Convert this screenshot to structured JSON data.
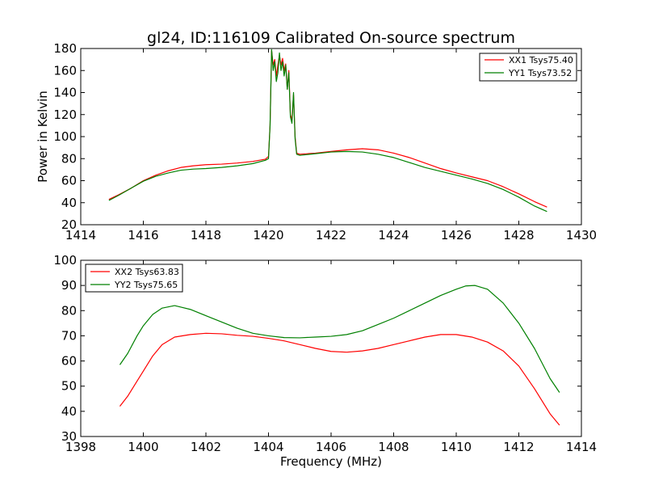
{
  "chart_data": [
    {
      "type": "line",
      "title": "gl24, ID:116109 Calibrated On-source spectrum",
      "xlabel": "",
      "ylabel": "Power in Kelvin",
      "xlim": [
        1414,
        1430
      ],
      "ylim": [
        20,
        180
      ],
      "xticks": [
        1414,
        1416,
        1418,
        1420,
        1422,
        1424,
        1426,
        1428,
        1430
      ],
      "yticks": [
        20,
        40,
        60,
        80,
        100,
        120,
        140,
        160,
        180
      ],
      "grid": false,
      "legend_position": "upper right",
      "series": [
        {
          "name": "XX1 Tsys75.40",
          "color": "#ff0000",
          "points": [
            [
              1414.9,
              43
            ],
            [
              1415.2,
              47
            ],
            [
              1415.6,
              53
            ],
            [
              1416.0,
              60
            ],
            [
              1416.4,
              65
            ],
            [
              1416.8,
              69
            ],
            [
              1417.2,
              72
            ],
            [
              1417.6,
              73.5
            ],
            [
              1418.0,
              74.5
            ],
            [
              1418.5,
              75
            ],
            [
              1419.0,
              76
            ],
            [
              1419.5,
              77.5
            ],
            [
              1419.9,
              79.5
            ],
            [
              1420.0,
              82
            ],
            [
              1420.05,
              110
            ],
            [
              1420.1,
              178
            ],
            [
              1420.15,
              165
            ],
            [
              1420.2,
              170
            ],
            [
              1420.25,
              155
            ],
            [
              1420.3,
              165
            ],
            [
              1420.35,
              174
            ],
            [
              1420.4,
              165
            ],
            [
              1420.45,
              171
            ],
            [
              1420.5,
              160
            ],
            [
              1420.55,
              166
            ],
            [
              1420.6,
              143
            ],
            [
              1420.65,
              160
            ],
            [
              1420.7,
              120
            ],
            [
              1420.75,
              115
            ],
            [
              1420.8,
              138
            ],
            [
              1420.85,
              100
            ],
            [
              1420.9,
              85
            ],
            [
              1421.0,
              84
            ],
            [
              1421.5,
              85
            ],
            [
              1422.0,
              86.5
            ],
            [
              1422.5,
              88
            ],
            [
              1423.0,
              89
            ],
            [
              1423.5,
              88
            ],
            [
              1424.0,
              85
            ],
            [
              1424.5,
              81
            ],
            [
              1425.0,
              76
            ],
            [
              1425.5,
              71
            ],
            [
              1426.0,
              67
            ],
            [
              1426.5,
              63.5
            ],
            [
              1427.0,
              60
            ],
            [
              1427.5,
              54.5
            ],
            [
              1428.0,
              48
            ],
            [
              1428.5,
              41
            ],
            [
              1428.9,
              36
            ]
          ]
        },
        {
          "name": "YY1 Tsys73.52",
          "color": "#008000",
          "points": [
            [
              1414.9,
              42
            ],
            [
              1415.2,
              46.5
            ],
            [
              1415.6,
              53
            ],
            [
              1416.0,
              59.5
            ],
            [
              1416.4,
              64
            ],
            [
              1416.8,
              67
            ],
            [
              1417.2,
              69.5
            ],
            [
              1417.6,
              70.5
            ],
            [
              1418.0,
              71
            ],
            [
              1418.5,
              72
            ],
            [
              1419.0,
              73.5
            ],
            [
              1419.5,
              75.5
            ],
            [
              1419.9,
              78.5
            ],
            [
              1420.0,
              80
            ],
            [
              1420.05,
              110
            ],
            [
              1420.1,
              179
            ],
            [
              1420.15,
              160
            ],
            [
              1420.2,
              168
            ],
            [
              1420.25,
              150
            ],
            [
              1420.3,
              158
            ],
            [
              1420.35,
              176
            ],
            [
              1420.4,
              160
            ],
            [
              1420.45,
              168
            ],
            [
              1420.5,
              155
            ],
            [
              1420.55,
              165
            ],
            [
              1420.6,
              143
            ],
            [
              1420.65,
              158
            ],
            [
              1420.7,
              118
            ],
            [
              1420.75,
              112
            ],
            [
              1420.8,
              140
            ],
            [
              1420.85,
              98
            ],
            [
              1420.9,
              84
            ],
            [
              1421.0,
              83
            ],
            [
              1421.5,
              84.5
            ],
            [
              1422.0,
              86
            ],
            [
              1422.5,
              86.5
            ],
            [
              1423.0,
              86
            ],
            [
              1423.5,
              84
            ],
            [
              1424.0,
              81
            ],
            [
              1424.5,
              76.5
            ],
            [
              1425.0,
              72
            ],
            [
              1425.5,
              68.5
            ],
            [
              1426.0,
              65
            ],
            [
              1426.5,
              61.5
            ],
            [
              1427.0,
              57.5
            ],
            [
              1427.5,
              52
            ],
            [
              1428.0,
              45
            ],
            [
              1428.5,
              37
            ],
            [
              1428.9,
              32
            ]
          ]
        }
      ]
    },
    {
      "type": "line",
      "title": "",
      "xlabel": "Frequency (MHz)",
      "ylabel": "",
      "xlim": [
        1398,
        1414
      ],
      "ylim": [
        30,
        100
      ],
      "xticks": [
        1398,
        1400,
        1402,
        1404,
        1406,
        1408,
        1410,
        1412,
        1414
      ],
      "yticks": [
        30,
        40,
        50,
        60,
        70,
        80,
        90,
        100
      ],
      "grid": false,
      "legend_position": "upper left",
      "series": [
        {
          "name": "XX2 Tsys63.83",
          "color": "#ff0000",
          "points": [
            [
              1399.25,
              42
            ],
            [
              1399.5,
              46
            ],
            [
              1399.8,
              52
            ],
            [
              1400.0,
              56
            ],
            [
              1400.3,
              62
            ],
            [
              1400.6,
              66.5
            ],
            [
              1401.0,
              69.5
            ],
            [
              1401.5,
              70.5
            ],
            [
              1402.0,
              71
            ],
            [
              1402.5,
              70.8
            ],
            [
              1403.0,
              70.2
            ],
            [
              1403.5,
              69.8
            ],
            [
              1404.0,
              69
            ],
            [
              1404.5,
              68
            ],
            [
              1405.0,
              66.5
            ],
            [
              1405.5,
              65
            ],
            [
              1406.0,
              63.8
            ],
            [
              1406.5,
              63.5
            ],
            [
              1407.0,
              64
            ],
            [
              1407.5,
              65
            ],
            [
              1408.0,
              66.5
            ],
            [
              1408.5,
              68
            ],
            [
              1409.0,
              69.5
            ],
            [
              1409.5,
              70.5
            ],
            [
              1410.0,
              70.5
            ],
            [
              1410.5,
              69.5
            ],
            [
              1411.0,
              67.5
            ],
            [
              1411.5,
              64
            ],
            [
              1412.0,
              58
            ],
            [
              1412.5,
              49
            ],
            [
              1413.0,
              39
            ],
            [
              1413.3,
              34.5
            ]
          ]
        },
        {
          "name": "YY2 Tsys75.65",
          "color": "#008000",
          "points": [
            [
              1399.25,
              58.5
            ],
            [
              1399.5,
              63
            ],
            [
              1399.8,
              70
            ],
            [
              1400.0,
              74
            ],
            [
              1400.3,
              78.5
            ],
            [
              1400.6,
              81
            ],
            [
              1401.0,
              82
            ],
            [
              1401.5,
              80.5
            ],
            [
              1402.0,
              78
            ],
            [
              1402.5,
              75.5
            ],
            [
              1403.0,
              73
            ],
            [
              1403.5,
              71
            ],
            [
              1404.0,
              70
            ],
            [
              1404.5,
              69.3
            ],
            [
              1405.0,
              69.2
            ],
            [
              1405.5,
              69.5
            ],
            [
              1406.0,
              69.8
            ],
            [
              1406.5,
              70.5
            ],
            [
              1407.0,
              72
            ],
            [
              1407.5,
              74.5
            ],
            [
              1408.0,
              77
            ],
            [
              1408.5,
              80
            ],
            [
              1409.0,
              83
            ],
            [
              1409.5,
              86
            ],
            [
              1410.0,
              88.5
            ],
            [
              1410.3,
              89.8
            ],
            [
              1410.6,
              90
            ],
            [
              1411.0,
              88.5
            ],
            [
              1411.5,
              83
            ],
            [
              1412.0,
              75
            ],
            [
              1412.5,
              65
            ],
            [
              1413.0,
              53
            ],
            [
              1413.3,
              47.5
            ]
          ]
        }
      ]
    }
  ]
}
